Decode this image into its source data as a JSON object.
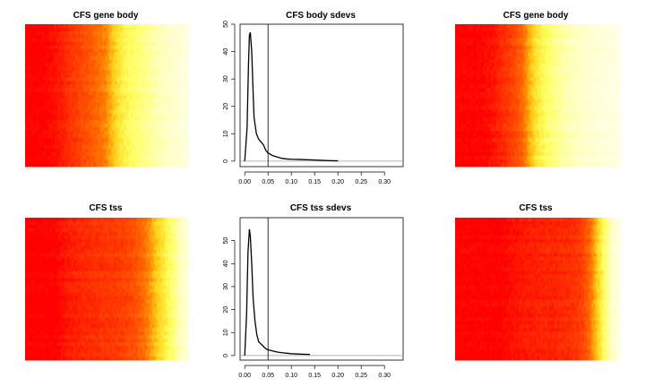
{
  "figure": {
    "titles": {
      "heat_body_left": "CFS gene body",
      "density_body": "CFS body sdevs",
      "heat_body_right": "CFS gene body",
      "heat_tss_left": "CFS tss",
      "density_tss": "CFS tss sdevs",
      "heat_tss_right": "CFS tss"
    }
  },
  "chart_data": [
    {
      "type": "heatmap",
      "title": "CFS gene body",
      "palette": [
        "#ff0000",
        "#ff3c00",
        "#ff7a00",
        "#ffd21a",
        "#ffff60",
        "#ffffbe",
        "#ffffe6"
      ],
      "column_profile": [
        0.0,
        0.0,
        0.0,
        0.02,
        0.05,
        0.09,
        0.14,
        0.18,
        0.22,
        0.26,
        0.31,
        0.37,
        0.5,
        0.6,
        0.66,
        0.7,
        0.74,
        0.78,
        0.82,
        0.86,
        0.9,
        0.94,
        1.0
      ]
    },
    {
      "type": "line",
      "title": "CFS body sdevs",
      "xlim": [
        -0.01,
        0.34
      ],
      "ylim": [
        -2,
        50
      ],
      "xticks": [
        "0.00",
        "0.05",
        "0.10",
        "0.15",
        "0.20",
        "0.25",
        "0.30"
      ],
      "yticks": [
        "0",
        "10",
        "20",
        "30",
        "40",
        "50"
      ],
      "vline": 0.05,
      "hline": 0,
      "x": [
        0.0,
        0.005,
        0.008,
        0.01,
        0.012,
        0.015,
        0.018,
        0.02,
        0.025,
        0.03,
        0.035,
        0.04,
        0.045,
        0.05,
        0.055,
        0.06,
        0.07,
        0.08,
        0.09,
        0.1,
        0.12,
        0.15,
        0.18,
        0.2
      ],
      "y": [
        0,
        12,
        35,
        46,
        47,
        40,
        25,
        16,
        10,
        8,
        7,
        6,
        4,
        3,
        2.5,
        2,
        1.5,
        1,
        0.8,
        0.7,
        0.6,
        0.4,
        0.2,
        0.1
      ]
    },
    {
      "type": "heatmap",
      "title": "CFS gene body",
      "palette": [
        "#ff0000",
        "#ff3c00",
        "#ff7a00",
        "#ffd21a",
        "#ffff60",
        "#ffffbe",
        "#ffffe6"
      ],
      "column_profile": [
        0.0,
        0.0,
        0.0,
        0.0,
        0.02,
        0.05,
        0.1,
        0.15,
        0.2,
        0.28,
        0.45,
        0.58,
        0.66,
        0.72,
        0.77,
        0.81,
        0.85,
        0.88,
        0.91,
        0.94,
        0.96,
        0.98,
        1.0
      ]
    },
    {
      "type": "heatmap",
      "title": "CFS tss",
      "palette": [
        "#ff0000",
        "#ff3c00",
        "#ff7a00",
        "#ffd21a",
        "#ffff60",
        "#ffffbe",
        "#ffffe6"
      ],
      "column_profile": [
        0.0,
        0.0,
        0.0,
        0.0,
        0.0,
        0.05,
        0.08,
        0.1,
        0.12,
        0.13,
        0.14,
        0.15,
        0.16,
        0.18,
        0.2,
        0.24,
        0.3,
        0.4,
        0.52,
        0.62,
        0.72,
        0.85,
        0.95
      ]
    },
    {
      "type": "line",
      "title": "CFS tss sdevs",
      "xlim": [
        -0.01,
        0.34
      ],
      "ylim": [
        -2,
        60
      ],
      "xticks": [
        "0.00",
        "0.05",
        "0.10",
        "0.15",
        "0.20",
        "0.25",
        "0.30"
      ],
      "yticks": [
        "0",
        "10",
        "20",
        "30",
        "40",
        "50"
      ],
      "vline": 0.05,
      "hline": 0,
      "x": [
        0.0,
        0.004,
        0.007,
        0.01,
        0.012,
        0.015,
        0.018,
        0.022,
        0.026,
        0.03,
        0.035,
        0.04,
        0.045,
        0.05,
        0.06,
        0.07,
        0.08,
        0.09,
        0.1,
        0.12,
        0.14
      ],
      "y": [
        0,
        18,
        45,
        55,
        52,
        40,
        25,
        15,
        9,
        6,
        5,
        4,
        3,
        2.5,
        2,
        1.5,
        1.2,
        1,
        0.8,
        0.6,
        0.5
      ]
    },
    {
      "type": "heatmap",
      "title": "CFS tss",
      "palette": [
        "#ff0000",
        "#ff3c00",
        "#ff7a00",
        "#ffd21a",
        "#ffff60",
        "#ffffbe",
        "#ffffe6"
      ],
      "column_profile": [
        0.0,
        0.0,
        0.0,
        0.0,
        0.0,
        0.0,
        0.0,
        0.03,
        0.05,
        0.07,
        0.08,
        0.09,
        0.1,
        0.1,
        0.11,
        0.12,
        0.14,
        0.18,
        0.3,
        0.5,
        0.7,
        0.88,
        1.0
      ]
    }
  ]
}
